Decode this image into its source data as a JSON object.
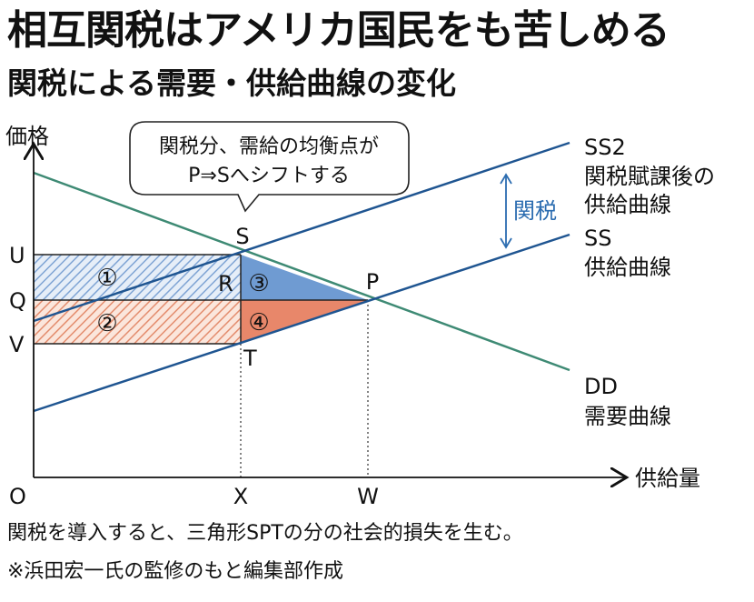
{
  "header": {
    "title": "相互関税はアメリカ国民をも苦しめる",
    "subtitle": "関税による需要・供給曲線の変化"
  },
  "axes": {
    "y_label": "価格",
    "x_label": "供給量",
    "origin": "O",
    "y_ticks": [
      "U",
      "Q",
      "V"
    ],
    "x_ticks": [
      "X",
      "W"
    ]
  },
  "callout": {
    "line1": "関税分、需給の均衡点が",
    "line2": "P⇒Sへシフトする"
  },
  "tariff_label": "関税",
  "curves": {
    "ss2": {
      "name": "SS2",
      "line2": "関税賦課後の",
      "line3": "供給曲線",
      "color": "#1f5591"
    },
    "ss": {
      "name": "SS",
      "line2": "供給曲線",
      "color": "#1f5591"
    },
    "dd": {
      "name": "DD",
      "line2": "需要曲線",
      "color": "#3e8a74"
    }
  },
  "points": {
    "S": "S",
    "P": "P",
    "R": "R",
    "T": "T"
  },
  "regions": {
    "r1": "①",
    "r2": "②",
    "r3": "③",
    "r4": "④",
    "colors": {
      "blue_hatch": "#8fb1dc",
      "orange_hatch": "#e8967a",
      "blue_fill": "#6f9bd2",
      "orange_fill": "#e8876a"
    }
  },
  "notes": {
    "line1": "関税を導入すると、三角形SPTの分の社会的損失を生む。",
    "line2": "※浜田宏一氏の監修のもと編集部作成"
  }
}
